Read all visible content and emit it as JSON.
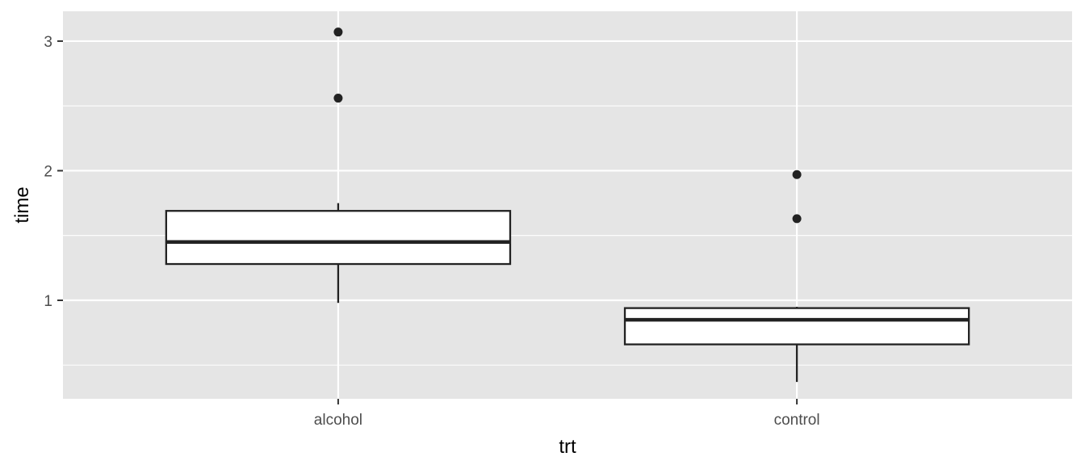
{
  "chart_data": {
    "type": "boxplot",
    "title": "",
    "xlabel": "trt",
    "ylabel": "time",
    "categories": [
      "alcohol",
      "control"
    ],
    "ylim": [
      0.24,
      3.23
    ],
    "y_ticks": [
      1,
      2,
      3
    ],
    "y_tick_labels": [
      "1",
      "2",
      "3"
    ],
    "y_minor_ticks": [
      0.5,
      1.5,
      2.5
    ],
    "grid": true,
    "background": "#e5e5e5",
    "grid_color": "#ffffff",
    "box_fill": "#ffffff",
    "line_color": "#222222",
    "boxes": [
      {
        "category": "alcohol",
        "whisker_low": 0.98,
        "q1": 1.28,
        "median": 1.45,
        "q3": 1.69,
        "whisker_high": 1.75,
        "outliers": [
          2.56,
          3.07
        ]
      },
      {
        "category": "control",
        "whisker_low": 0.37,
        "q1": 0.66,
        "median": 0.85,
        "q3": 0.94,
        "whisker_high": 0.95,
        "outliers": [
          1.63,
          1.97
        ]
      }
    ]
  }
}
